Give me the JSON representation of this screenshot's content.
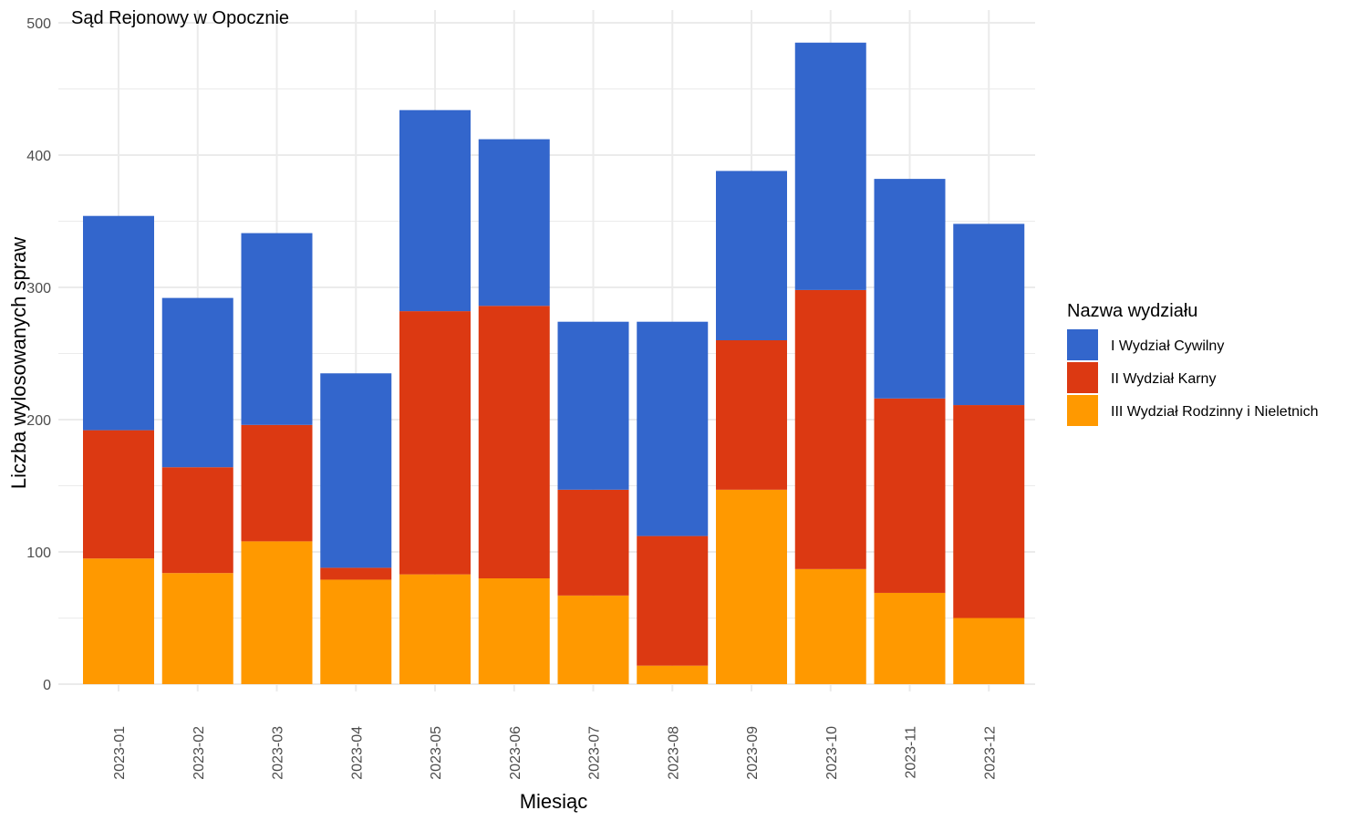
{
  "chart_data": {
    "type": "bar",
    "stacked": true,
    "title": "Sąd Rejonowy w Opocznie",
    "xlabel": "Miesiąc",
    "ylabel": "Liczba wylosowanych spraw",
    "ylim": [
      0,
      500
    ],
    "yticks": [
      0,
      100,
      200,
      300,
      400,
      500
    ],
    "grid": true,
    "legend": {
      "title": "Nazwa wydziału",
      "position": "right"
    },
    "categories": [
      "2023-01",
      "2023-02",
      "2023-03",
      "2023-04",
      "2023-05",
      "2023-06",
      "2023-07",
      "2023-08",
      "2023-09",
      "2023-10",
      "2023-11",
      "2023-12"
    ],
    "series": [
      {
        "name": "III Wydział Rodzinny i Nieletnich",
        "color": "#FF9900",
        "values": [
          95,
          84,
          108,
          79,
          83,
          80,
          67,
          14,
          147,
          87,
          69,
          50
        ]
      },
      {
        "name": "II Wydział Karny",
        "color": "#DC3912",
        "values": [
          97,
          80,
          88,
          9,
          199,
          206,
          80,
          98,
          113,
          211,
          147,
          161
        ]
      },
      {
        "name": "I Wydział Cywilny",
        "color": "#3366CC",
        "values": [
          162,
          128,
          145,
          147,
          152,
          126,
          127,
          162,
          128,
          187,
          166,
          137
        ]
      }
    ],
    "legend_order": [
      "I Wydział Cywilny",
      "II Wydział Karny",
      "III Wydział Rodzinny i Nieletnich"
    ],
    "grid_color": "#ebebeb"
  }
}
